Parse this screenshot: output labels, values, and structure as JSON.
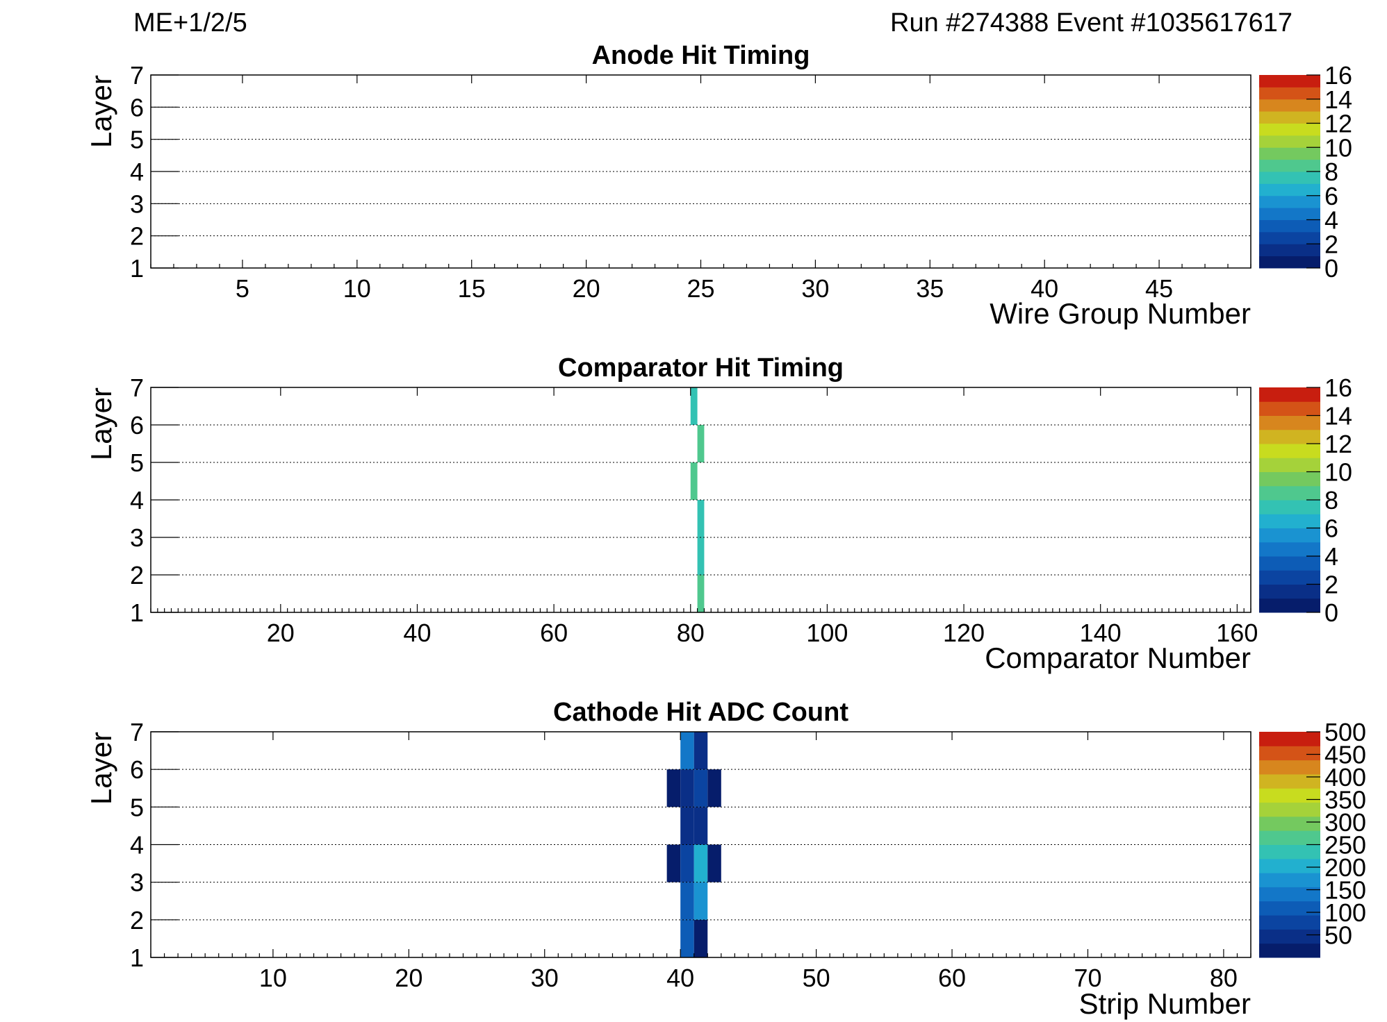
{
  "header": {
    "chamber": "ME+1/2/5",
    "run_event": "Run #274388  Event #1035617617"
  },
  "chart_data": [
    {
      "type": "heatmap",
      "title": "Anode Hit Timing",
      "xlabel": "Wire Group Number",
      "ylabel": "Layer",
      "xlim": [
        1,
        49
      ],
      "ylim": [
        1,
        7
      ],
      "xticks": [
        5,
        10,
        15,
        20,
        25,
        30,
        35,
        40,
        45
      ],
      "yticks": [
        1,
        2,
        3,
        4,
        5,
        6,
        7
      ],
      "grid": "horizontal dotted",
      "zlim": [
        0,
        16
      ],
      "zticks": [
        0,
        2,
        4,
        6,
        8,
        10,
        12,
        14,
        16
      ],
      "cells": []
    },
    {
      "type": "heatmap",
      "title": "Comparator Hit Timing",
      "xlabel": "Comparator Number",
      "ylabel": "Layer",
      "xlim": [
        1,
        162
      ],
      "ylim": [
        1,
        7
      ],
      "xticks": [
        20,
        40,
        60,
        80,
        100,
        120,
        140,
        160
      ],
      "yticks": [
        1,
        2,
        3,
        4,
        5,
        6,
        7
      ],
      "grid": "horizontal dotted",
      "zlim": [
        0,
        16
      ],
      "zticks": [
        0,
        2,
        4,
        6,
        8,
        10,
        12,
        14,
        16
      ],
      "cells": [
        {
          "x": 80,
          "layer": 6,
          "value": 7
        },
        {
          "x": 81,
          "layer": 5,
          "value": 8
        },
        {
          "x": 80,
          "layer": 4,
          "value": 8
        },
        {
          "x": 81,
          "layer": 3,
          "value": 7
        },
        {
          "x": 81,
          "layer": 2,
          "value": 7
        },
        {
          "x": 81,
          "layer": 1,
          "value": 8
        }
      ]
    },
    {
      "type": "heatmap",
      "title": "Cathode Hit ADC Count",
      "xlabel": "Strip Number",
      "ylabel": "Layer",
      "xlim": [
        1,
        82
      ],
      "ylim": [
        1,
        7
      ],
      "xticks": [
        10,
        20,
        30,
        40,
        50,
        60,
        70,
        80
      ],
      "yticks": [
        1,
        2,
        3,
        4,
        5,
        6,
        7
      ],
      "grid": "horizontal dotted",
      "background_color": "#cccccc",
      "readout_window": [
        33,
        49
      ],
      "zlim": [
        0,
        500
      ],
      "zticks": [
        50,
        100,
        150,
        200,
        250,
        300,
        350,
        400,
        450,
        500
      ],
      "cells": [
        {
          "x": 40,
          "layer": 6,
          "value": 130
        },
        {
          "x": 41,
          "layer": 6,
          "value": 60
        },
        {
          "x": 39,
          "layer": 5,
          "value": 20
        },
        {
          "x": 40,
          "layer": 5,
          "value": 55
        },
        {
          "x": 41,
          "layer": 5,
          "value": 90
        },
        {
          "x": 42,
          "layer": 5,
          "value": 25
        },
        {
          "x": 40,
          "layer": 4,
          "value": 50
        },
        {
          "x": 41,
          "layer": 4,
          "value": 60
        },
        {
          "x": 39,
          "layer": 3,
          "value": 30
        },
        {
          "x": 40,
          "layer": 3,
          "value": 80
        },
        {
          "x": 41,
          "layer": 3,
          "value": 210
        },
        {
          "x": 42,
          "layer": 3,
          "value": 30
        },
        {
          "x": 40,
          "layer": 2,
          "value": 100
        },
        {
          "x": 41,
          "layer": 2,
          "value": 160
        },
        {
          "x": 40,
          "layer": 1,
          "value": 100
        },
        {
          "x": 41,
          "layer": 1,
          "value": 20
        }
      ]
    }
  ]
}
